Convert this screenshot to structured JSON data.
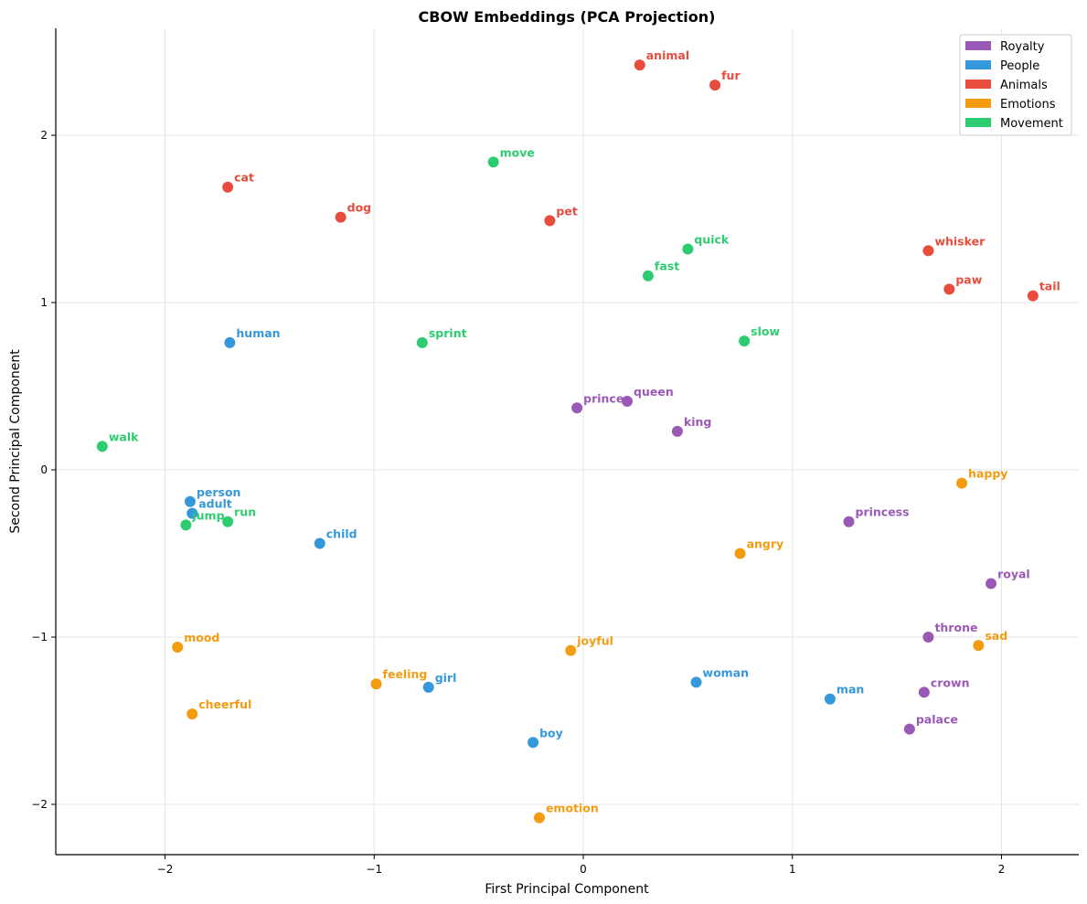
{
  "chart_data": {
    "type": "scatter",
    "title": "CBOW Embeddings (PCA Projection)",
    "xlabel": "First Principal Component",
    "ylabel": "Second Principal Component",
    "xlim": [
      -2.53,
      2.36
    ],
    "ylim": [
      -2.3,
      2.64
    ],
    "xticks": [
      -2,
      -1,
      0,
      1,
      2
    ],
    "yticks": [
      -2,
      -1,
      0,
      1,
      2
    ],
    "xtick_labels": [
      "−2",
      "−1",
      "0",
      "1",
      "2"
    ],
    "ytick_labels": [
      "−2",
      "−1",
      "0",
      "1",
      "2"
    ],
    "grid": true,
    "legend_position": "upper right",
    "categories": [
      {
        "name": "Royalty",
        "color": "#9b59b6"
      },
      {
        "name": "People",
        "color": "#3498db"
      },
      {
        "name": "Animals",
        "color": "#e74c3c"
      },
      {
        "name": "Emotions",
        "color": "#f39c12"
      },
      {
        "name": "Movement",
        "color": "#2ecc71"
      }
    ],
    "points": [
      {
        "word": "king",
        "category": "Royalty",
        "x": 0.45,
        "y": 0.23
      },
      {
        "word": "queen",
        "category": "Royalty",
        "x": 0.21,
        "y": 0.41
      },
      {
        "word": "prince",
        "category": "Royalty",
        "x": -0.03,
        "y": 0.37
      },
      {
        "word": "princess",
        "category": "Royalty",
        "x": 1.27,
        "y": -0.31
      },
      {
        "word": "royal",
        "category": "Royalty",
        "x": 1.95,
        "y": -0.68
      },
      {
        "word": "throne",
        "category": "Royalty",
        "x": 1.65,
        "y": -1.0
      },
      {
        "word": "crown",
        "category": "Royalty",
        "x": 1.63,
        "y": -1.33
      },
      {
        "word": "palace",
        "category": "Royalty",
        "x": 1.56,
        "y": -1.55
      },
      {
        "word": "human",
        "category": "People",
        "x": -1.69,
        "y": 0.76
      },
      {
        "word": "person",
        "category": "People",
        "x": -1.88,
        "y": -0.19
      },
      {
        "word": "adult",
        "category": "People",
        "x": -1.87,
        "y": -0.26
      },
      {
        "word": "child",
        "category": "People",
        "x": -1.26,
        "y": -0.44
      },
      {
        "word": "girl",
        "category": "People",
        "x": -0.74,
        "y": -1.3
      },
      {
        "word": "woman",
        "category": "People",
        "x": 0.54,
        "y": -1.27
      },
      {
        "word": "man",
        "category": "People",
        "x": 1.18,
        "y": -1.37
      },
      {
        "word": "boy",
        "category": "People",
        "x": -0.24,
        "y": -1.63
      },
      {
        "word": "animal",
        "category": "Animals",
        "x": 0.27,
        "y": 2.42
      },
      {
        "word": "fur",
        "category": "Animals",
        "x": 0.63,
        "y": 2.3
      },
      {
        "word": "cat",
        "category": "Animals",
        "x": -1.7,
        "y": 1.69
      },
      {
        "word": "dog",
        "category": "Animals",
        "x": -1.16,
        "y": 1.51
      },
      {
        "word": "pet",
        "category": "Animals",
        "x": -0.16,
        "y": 1.49
      },
      {
        "word": "whisker",
        "category": "Animals",
        "x": 1.65,
        "y": 1.31
      },
      {
        "word": "paw",
        "category": "Animals",
        "x": 1.75,
        "y": 1.08
      },
      {
        "word": "tail",
        "category": "Animals",
        "x": 2.15,
        "y": 1.04
      },
      {
        "word": "happy",
        "category": "Emotions",
        "x": 1.81,
        "y": -0.08
      },
      {
        "word": "angry",
        "category": "Emotions",
        "x": 0.75,
        "y": -0.5
      },
      {
        "word": "mood",
        "category": "Emotions",
        "x": -1.94,
        "y": -1.06
      },
      {
        "word": "joyful",
        "category": "Emotions",
        "x": -0.06,
        "y": -1.08
      },
      {
        "word": "sad",
        "category": "Emotions",
        "x": 1.89,
        "y": -1.05
      },
      {
        "word": "feeling",
        "category": "Emotions",
        "x": -0.99,
        "y": -1.28
      },
      {
        "word": "cheerful",
        "category": "Emotions",
        "x": -1.87,
        "y": -1.46
      },
      {
        "word": "emotion",
        "category": "Emotions",
        "x": -0.21,
        "y": -2.08
      },
      {
        "word": "move",
        "category": "Movement",
        "x": -0.43,
        "y": 1.84
      },
      {
        "word": "quick",
        "category": "Movement",
        "x": 0.5,
        "y": 1.32
      },
      {
        "word": "fast",
        "category": "Movement",
        "x": 0.31,
        "y": 1.16
      },
      {
        "word": "sprint",
        "category": "Movement",
        "x": -0.77,
        "y": 0.76
      },
      {
        "word": "slow",
        "category": "Movement",
        "x": 0.77,
        "y": 0.77
      },
      {
        "word": "walk",
        "category": "Movement",
        "x": -2.3,
        "y": 0.14
      },
      {
        "word": "jump",
        "category": "Movement",
        "x": -1.9,
        "y": -0.33
      },
      {
        "word": "run",
        "category": "Movement",
        "x": -1.7,
        "y": -0.31
      }
    ]
  }
}
